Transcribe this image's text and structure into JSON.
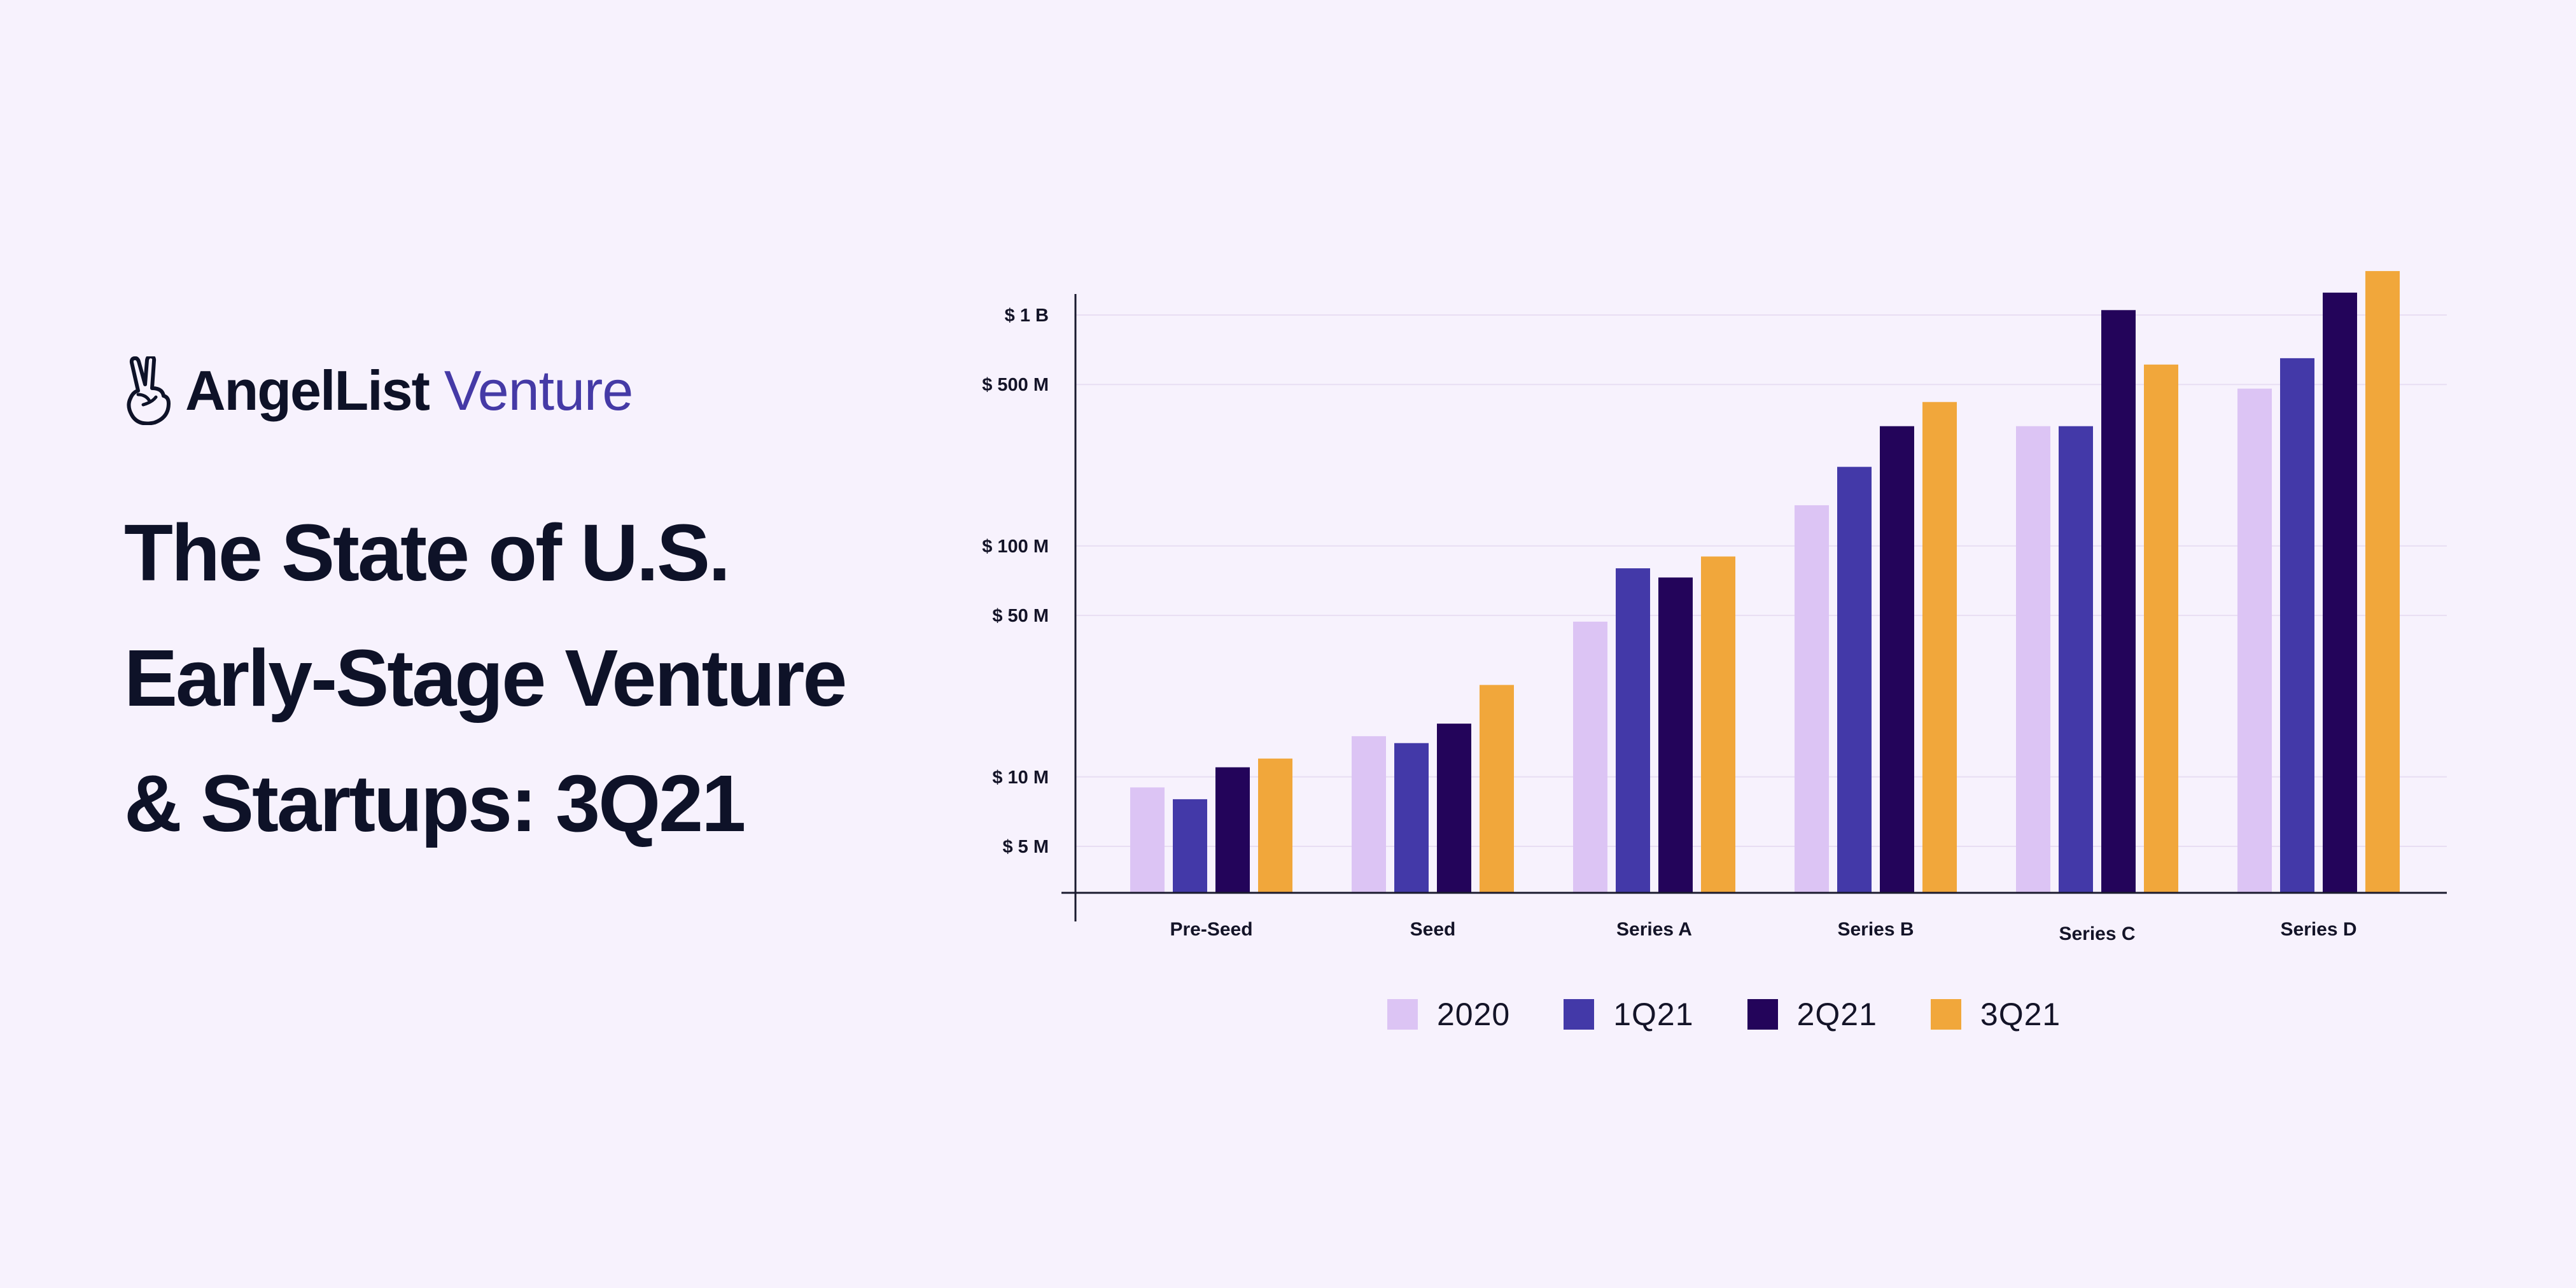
{
  "brand": {
    "name": "AngelList",
    "product": "Venture",
    "logo_icon": "peace-hand-icon"
  },
  "headline": {
    "line1": "The State of U.S.",
    "line2": "Early-Stage Venture",
    "line3": "& Startups: 3Q21"
  },
  "colors": {
    "background": "#f7f2fd",
    "2020": "#dcc4f4",
    "1Q21": "#4339a8",
    "2Q21": "#23045a",
    "3Q21": "#f1a73b",
    "axis": "#1a1a2e",
    "grid": "#e8def3"
  },
  "chart_data": {
    "type": "bar",
    "title": "",
    "xlabel": "",
    "ylabel": "",
    "yscale": "log",
    "ylim": [
      2.3,
      1500
    ],
    "yticks": [
      {
        "value": 5,
        "label": "$ 5 M"
      },
      {
        "value": 10,
        "label": "$ 10 M"
      },
      {
        "value": 50,
        "label": "$ 50 M"
      },
      {
        "value": 100,
        "label": "$ 100 M"
      },
      {
        "value": 500,
        "label": "$ 500 M"
      },
      {
        "value": 1000,
        "label": "$ 1 B"
      }
    ],
    "categories": [
      "Pre-Seed",
      "Seed",
      "Series A",
      "Series B",
      "Series C",
      "Series D"
    ],
    "series": [
      {
        "name": "2020",
        "color": "#dcc4f4",
        "values": [
          9,
          15,
          47,
          150,
          330,
          480
        ]
      },
      {
        "name": "1Q21",
        "color": "#4339a8",
        "values": [
          8,
          14,
          80,
          220,
          330,
          650
        ]
      },
      {
        "name": "2Q21",
        "color": "#23045a",
        "values": [
          11,
          17,
          73,
          330,
          1050,
          1250
        ]
      },
      {
        "name": "3Q21",
        "color": "#f1a73b",
        "values": [
          12,
          25,
          90,
          420,
          610,
          1550
        ]
      }
    ],
    "legend": "bottom"
  }
}
